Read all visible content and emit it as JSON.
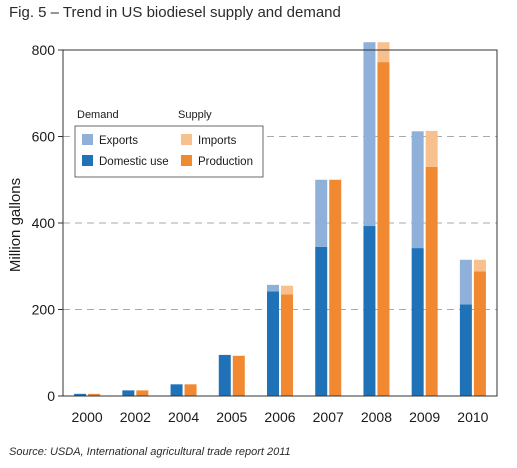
{
  "chart_data": {
    "type": "bar",
    "title": "Fig. 5 – Trend in US biodiesel supply and demand",
    "ylabel": "Million gallons",
    "xlabel": "",
    "ylim": [
      0,
      800
    ],
    "yticks": [
      0,
      200,
      400,
      600,
      800
    ],
    "grid": "horizontal-dashed",
    "categories": [
      "2000",
      "2002",
      "2004",
      "2005",
      "2006",
      "2007",
      "2008",
      "2009",
      "2010"
    ],
    "stacks": [
      {
        "name": "Demand",
        "series": [
          {
            "name": "Domestic use",
            "color": "#1f72b8",
            "values": [
              5,
              13,
              27,
              95,
              242,
              345,
              393,
              342,
              212
            ]
          },
          {
            "name": "Exports",
            "color": "#8fb0d8",
            "values": [
              0,
              0,
              0,
              0,
              15,
              155,
              425,
              270,
              103
            ]
          }
        ]
      },
      {
        "name": "Supply",
        "series": [
          {
            "name": "Production",
            "color": "#f0892f",
            "values": [
              5,
              13,
              27,
              93,
              235,
              500,
              772,
              530,
              288
            ]
          },
          {
            "name": "Imports",
            "color": "#f7c08c",
            "values": [
              0,
              0,
              0,
              0,
              20,
              0,
              46,
              83,
              27
            ]
          }
        ]
      }
    ],
    "legend": {
      "placement": "top-left",
      "demand_heading": "Demand",
      "supply_heading": "Supply",
      "items": [
        {
          "label": "Exports",
          "color": "#8fb0d8"
        },
        {
          "label": "Imports",
          "color": "#f7c08c"
        },
        {
          "label": "Domestic use",
          "color": "#1f72b8"
        },
        {
          "label": "Production",
          "color": "#f0892f"
        }
      ]
    },
    "source": "Source: USDA, International agricultural trade report 2011"
  }
}
